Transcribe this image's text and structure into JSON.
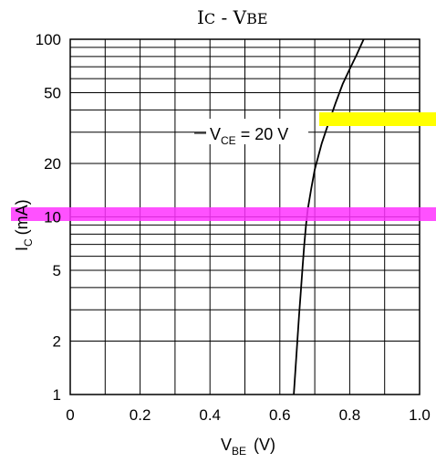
{
  "chart_data": {
    "type": "line",
    "title": {
      "main": "I",
      "sub": "C",
      "sep": " - ",
      "var": "V",
      "var_sub": "BE"
    },
    "xlabel": {
      "main": "V",
      "sub": "BE",
      "unit": "(V)"
    },
    "ylabel": {
      "main": "I",
      "sub": "C",
      "unit": "(mA)"
    },
    "xlim": [
      0,
      1.0
    ],
    "ylim": [
      1,
      100
    ],
    "yscale": "log",
    "grid": true,
    "x_ticks": [
      "0",
      "0.2",
      "0.4",
      "0.6",
      "0.8",
      "1.0"
    ],
    "y_ticks": [
      "1",
      "2",
      "5",
      "10",
      "20",
      "50",
      "100"
    ],
    "annotation": {
      "main": "V",
      "sub": "CE",
      "rest": " = 20 V"
    },
    "series": [
      {
        "x": [
          0.64,
          0.645,
          0.65,
          0.655,
          0.66,
          0.665,
          0.67,
          0.675,
          0.68,
          0.69,
          0.7,
          0.72,
          0.74,
          0.76,
          0.78,
          0.8,
          0.82,
          0.84
        ],
        "y": [
          1,
          1.4,
          2.0,
          2.8,
          3.8,
          5.2,
          7.0,
          9.0,
          11.0,
          14.5,
          18.5,
          26,
          34,
          44,
          56,
          68,
          82,
          100
        ]
      }
    ],
    "overlays": {
      "yellow": "#ffff00",
      "magenta": "#ff33ff"
    }
  }
}
